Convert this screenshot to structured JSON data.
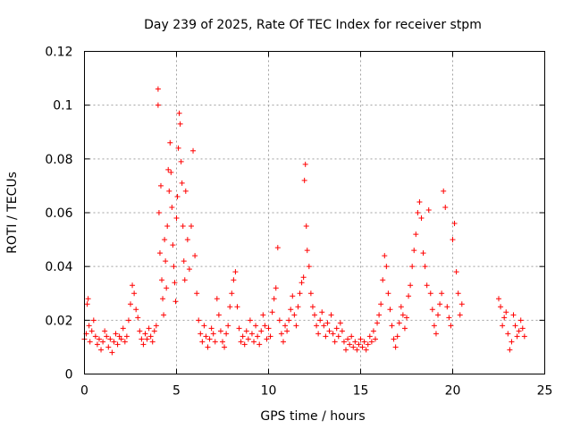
{
  "chart_data": {
    "type": "scatter",
    "title": "Day 239 of 2025, Rate Of TEC Index for receiver stpm",
    "xlabel": "GPS time / hours",
    "ylabel": "ROTI / TECUs",
    "xlim": [
      0,
      25
    ],
    "ylim": [
      0,
      0.12
    ],
    "x_ticks": [
      "0",
      "5",
      "10",
      "15",
      "20",
      "25"
    ],
    "y_ticks": [
      "0",
      "0.02",
      "0.04",
      "0.06",
      "0.08",
      "0.1",
      "0.12"
    ],
    "grid": true,
    "legend": "none",
    "marker": "plus",
    "color": "#ff0000",
    "series": [
      {
        "points": [
          [
            0.0,
            0.013
          ],
          [
            0.1,
            0.015
          ],
          [
            0.15,
            0.026
          ],
          [
            0.2,
            0.028
          ],
          [
            0.25,
            0.018
          ],
          [
            0.3,
            0.012
          ],
          [
            0.4,
            0.016
          ],
          [
            0.5,
            0.02
          ],
          [
            0.6,
            0.014
          ],
          [
            0.7,
            0.011
          ],
          [
            0.8,
            0.013
          ],
          [
            0.9,
            0.009
          ],
          [
            1.0,
            0.012
          ],
          [
            1.1,
            0.016
          ],
          [
            1.2,
            0.014
          ],
          [
            1.3,
            0.01
          ],
          [
            1.4,
            0.013
          ],
          [
            1.5,
            0.008
          ],
          [
            1.6,
            0.012
          ],
          [
            1.7,
            0.015
          ],
          [
            1.8,
            0.011
          ],
          [
            1.9,
            0.014
          ],
          [
            2.0,
            0.013
          ],
          [
            2.1,
            0.017
          ],
          [
            2.2,
            0.012
          ],
          [
            2.3,
            0.014
          ],
          [
            2.4,
            0.02
          ],
          [
            2.5,
            0.026
          ],
          [
            2.6,
            0.033
          ],
          [
            2.7,
            0.03
          ],
          [
            2.8,
            0.024
          ],
          [
            2.9,
            0.021
          ],
          [
            3.0,
            0.016
          ],
          [
            3.1,
            0.013
          ],
          [
            3.2,
            0.011
          ],
          [
            3.3,
            0.015
          ],
          [
            3.4,
            0.013
          ],
          [
            3.5,
            0.017
          ],
          [
            3.6,
            0.014
          ],
          [
            3.7,
            0.012
          ],
          [
            3.8,
            0.016
          ],
          [
            3.9,
            0.018
          ],
          [
            4.0,
            0.106
          ],
          [
            4.0,
            0.1
          ],
          [
            4.05,
            0.06
          ],
          [
            4.1,
            0.045
          ],
          [
            4.15,
            0.07
          ],
          [
            4.2,
            0.035
          ],
          [
            4.25,
            0.028
          ],
          [
            4.3,
            0.022
          ],
          [
            4.35,
            0.05
          ],
          [
            4.4,
            0.042
          ],
          [
            4.45,
            0.032
          ],
          [
            4.5,
            0.055
          ],
          [
            4.55,
            0.076
          ],
          [
            4.6,
            0.068
          ],
          [
            4.65,
            0.086
          ],
          [
            4.7,
            0.075
          ],
          [
            4.75,
            0.062
          ],
          [
            4.8,
            0.048
          ],
          [
            4.85,
            0.04
          ],
          [
            4.9,
            0.034
          ],
          [
            4.95,
            0.027
          ],
          [
            5.0,
            0.058
          ],
          [
            5.05,
            0.066
          ],
          [
            5.1,
            0.084
          ],
          [
            5.15,
            0.097
          ],
          [
            5.2,
            0.093
          ],
          [
            5.25,
            0.079
          ],
          [
            5.3,
            0.071
          ],
          [
            5.35,
            0.055
          ],
          [
            5.4,
            0.042
          ],
          [
            5.45,
            0.035
          ],
          [
            5.5,
            0.068
          ],
          [
            5.6,
            0.05
          ],
          [
            5.7,
            0.039
          ],
          [
            5.8,
            0.055
          ],
          [
            5.9,
            0.083
          ],
          [
            6.0,
            0.044
          ],
          [
            6.1,
            0.03
          ],
          [
            6.2,
            0.02
          ],
          [
            6.3,
            0.015
          ],
          [
            6.4,
            0.012
          ],
          [
            6.5,
            0.018
          ],
          [
            6.6,
            0.014
          ],
          [
            6.7,
            0.01
          ],
          [
            6.8,
            0.013
          ],
          [
            6.9,
            0.017
          ],
          [
            7.0,
            0.015
          ],
          [
            7.1,
            0.012
          ],
          [
            7.2,
            0.028
          ],
          [
            7.3,
            0.022
          ],
          [
            7.4,
            0.016
          ],
          [
            7.5,
            0.012
          ],
          [
            7.6,
            0.01
          ],
          [
            7.7,
            0.015
          ],
          [
            7.8,
            0.018
          ],
          [
            7.9,
            0.025
          ],
          [
            8.0,
            0.03
          ],
          [
            8.1,
            0.035
          ],
          [
            8.2,
            0.038
          ],
          [
            8.3,
            0.025
          ],
          [
            8.4,
            0.017
          ],
          [
            8.5,
            0.012
          ],
          [
            8.6,
            0.014
          ],
          [
            8.7,
            0.011
          ],
          [
            8.8,
            0.016
          ],
          [
            8.9,
            0.013
          ],
          [
            9.0,
            0.02
          ],
          [
            9.1,
            0.015
          ],
          [
            9.2,
            0.012
          ],
          [
            9.3,
            0.018
          ],
          [
            9.4,
            0.014
          ],
          [
            9.5,
            0.011
          ],
          [
            9.6,
            0.016
          ],
          [
            9.7,
            0.022
          ],
          [
            9.8,
            0.018
          ],
          [
            9.9,
            0.013
          ],
          [
            10.0,
            0.017
          ],
          [
            10.1,
            0.014
          ],
          [
            10.2,
            0.023
          ],
          [
            10.3,
            0.028
          ],
          [
            10.4,
            0.032
          ],
          [
            10.5,
            0.047
          ],
          [
            10.6,
            0.02
          ],
          [
            10.7,
            0.015
          ],
          [
            10.8,
            0.012
          ],
          [
            10.9,
            0.018
          ],
          [
            11.0,
            0.016
          ],
          [
            11.1,
            0.02
          ],
          [
            11.2,
            0.024
          ],
          [
            11.3,
            0.029
          ],
          [
            11.4,
            0.022
          ],
          [
            11.5,
            0.018
          ],
          [
            11.6,
            0.025
          ],
          [
            11.7,
            0.03
          ],
          [
            11.8,
            0.034
          ],
          [
            11.9,
            0.036
          ],
          [
            11.95,
            0.072
          ],
          [
            12.0,
            0.078
          ],
          [
            12.05,
            0.055
          ],
          [
            12.1,
            0.046
          ],
          [
            12.2,
            0.04
          ],
          [
            12.3,
            0.03
          ],
          [
            12.4,
            0.025
          ],
          [
            12.5,
            0.022
          ],
          [
            12.6,
            0.018
          ],
          [
            12.7,
            0.015
          ],
          [
            12.8,
            0.02
          ],
          [
            12.9,
            0.023
          ],
          [
            13.0,
            0.018
          ],
          [
            13.1,
            0.014
          ],
          [
            13.2,
            0.019
          ],
          [
            13.3,
            0.016
          ],
          [
            13.4,
            0.022
          ],
          [
            13.5,
            0.015
          ],
          [
            13.6,
            0.012
          ],
          [
            13.7,
            0.017
          ],
          [
            13.8,
            0.014
          ],
          [
            13.9,
            0.019
          ],
          [
            14.0,
            0.016
          ],
          [
            14.1,
            0.012
          ],
          [
            14.2,
            0.009
          ],
          [
            14.3,
            0.013
          ],
          [
            14.4,
            0.011
          ],
          [
            14.5,
            0.014
          ],
          [
            14.6,
            0.01
          ],
          [
            14.7,
            0.012
          ],
          [
            14.8,
            0.009
          ],
          [
            14.9,
            0.011
          ],
          [
            15.0,
            0.013
          ],
          [
            15.1,
            0.01
          ],
          [
            15.2,
            0.012
          ],
          [
            15.3,
            0.009
          ],
          [
            15.4,
            0.011
          ],
          [
            15.5,
            0.014
          ],
          [
            15.6,
            0.012
          ],
          [
            15.7,
            0.016
          ],
          [
            15.8,
            0.013
          ],
          [
            15.9,
            0.019
          ],
          [
            16.0,
            0.022
          ],
          [
            16.1,
            0.026
          ],
          [
            16.2,
            0.035
          ],
          [
            16.3,
            0.044
          ],
          [
            16.4,
            0.04
          ],
          [
            16.5,
            0.03
          ],
          [
            16.6,
            0.024
          ],
          [
            16.7,
            0.018
          ],
          [
            16.8,
            0.013
          ],
          [
            16.9,
            0.01
          ],
          [
            17.0,
            0.014
          ],
          [
            17.1,
            0.019
          ],
          [
            17.2,
            0.025
          ],
          [
            17.3,
            0.022
          ],
          [
            17.4,
            0.017
          ],
          [
            17.5,
            0.021
          ],
          [
            17.6,
            0.029
          ],
          [
            17.7,
            0.033
          ],
          [
            17.8,
            0.04
          ],
          [
            17.9,
            0.046
          ],
          [
            18.0,
            0.052
          ],
          [
            18.1,
            0.06
          ],
          [
            18.2,
            0.064
          ],
          [
            18.3,
            0.058
          ],
          [
            18.4,
            0.045
          ],
          [
            18.5,
            0.04
          ],
          [
            18.6,
            0.033
          ],
          [
            18.7,
            0.061
          ],
          [
            18.8,
            0.03
          ],
          [
            18.9,
            0.024
          ],
          [
            19.0,
            0.018
          ],
          [
            19.1,
            0.015
          ],
          [
            19.2,
            0.022
          ],
          [
            19.3,
            0.026
          ],
          [
            19.4,
            0.03
          ],
          [
            19.5,
            0.068
          ],
          [
            19.6,
            0.062
          ],
          [
            19.7,
            0.025
          ],
          [
            19.8,
            0.021
          ],
          [
            19.9,
            0.018
          ],
          [
            20.0,
            0.05
          ],
          [
            20.1,
            0.056
          ],
          [
            20.2,
            0.038
          ],
          [
            20.3,
            0.03
          ],
          [
            20.4,
            0.022
          ],
          [
            20.5,
            0.026
          ],
          [
            22.5,
            0.028
          ],
          [
            22.6,
            0.025
          ],
          [
            22.7,
            0.018
          ],
          [
            22.8,
            0.021
          ],
          [
            22.9,
            0.023
          ],
          [
            23.0,
            0.015
          ],
          [
            23.1,
            0.009
          ],
          [
            23.2,
            0.012
          ],
          [
            23.3,
            0.022
          ],
          [
            23.4,
            0.018
          ],
          [
            23.5,
            0.014
          ],
          [
            23.6,
            0.016
          ],
          [
            23.7,
            0.02
          ],
          [
            23.8,
            0.017
          ],
          [
            23.9,
            0.014
          ]
        ]
      }
    ]
  }
}
